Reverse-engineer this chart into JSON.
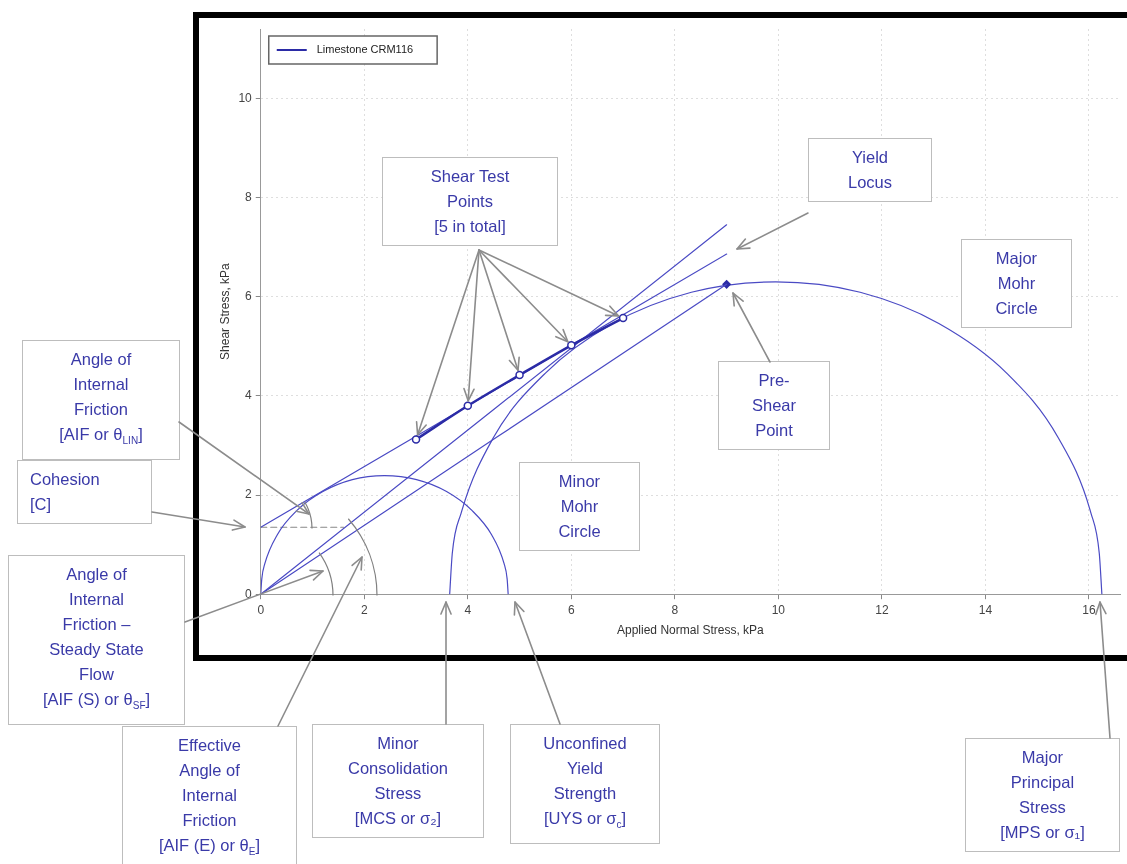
{
  "chart_data": {
    "type": "line",
    "xlabel": "Applied Normal Stress, kPa",
    "ylabel": "Shear Stress, kPa",
    "xlim": [
      0,
      16.6
    ],
    "ylim": [
      0,
      11.4
    ],
    "xticks": [
      0,
      2,
      4,
      6,
      8,
      10,
      12,
      14,
      16
    ],
    "yticks": [
      0,
      2,
      4,
      6,
      8,
      10
    ],
    "grid": true,
    "legend": "top left",
    "marker": "none",
    "series": [
      {
        "name": "Limestone CRM116",
        "color": "#2b2ba6",
        "marker": "circle",
        "x": [
          3,
          4,
          5,
          6,
          7
        ],
        "values": [
          3.12,
          3.8,
          4.42,
          5.02,
          5.57
        ]
      },
      {
        "color": "#4a4ac4",
        "x": [
          0,
          9
        ],
        "values": [
          1.35,
          6.86
        ]
      },
      {
        "color": "#4a4ac4",
        "x": [
          0,
          9
        ],
        "values": [
          0,
          7.45
        ]
      },
      {
        "color": "#4a4ac4",
        "x": [
          0,
          9
        ],
        "values": [
          0,
          6.25
        ]
      },
      {
        "type": "scatter",
        "color": "#2b2ba6",
        "marker": "diamond",
        "x": [
          9
        ],
        "values": [
          6.25
        ]
      },
      {
        "color": "#4a4ac4",
        "x": [
          0,
          0.02,
          0.08,
          0.32,
          0.7,
          1.2,
          1.77,
          2.39,
          3.01,
          3.59,
          4.08,
          4.46,
          4.7,
          4.76,
          4.78
        ],
        "values": [
          0,
          0.31,
          0.62,
          1.2,
          1.69,
          2.07,
          2.31,
          2.39,
          2.31,
          2.07,
          1.69,
          1.2,
          0.62,
          0.31,
          0
        ]
      },
      {
        "color": "#4a4ac4",
        "x": [
          3.65,
          3.7,
          3.87,
          4.49,
          5.5,
          6.8,
          8.32,
          9.95,
          11.58,
          13.1,
          14.41,
          15.41,
          16.04,
          16.2,
          16.25
        ],
        "values": [
          0,
          0.82,
          1.63,
          3.15,
          4.46,
          5.46,
          6.09,
          6.3,
          6.09,
          5.46,
          4.46,
          3.15,
          1.63,
          0.82,
          0
        ]
      },
      {
        "color": "#888888",
        "line_style": "dashed",
        "x": [
          0,
          1.6
        ],
        "values": [
          1.35,
          1.35
        ]
      }
    ],
    "annotations": [
      {
        "text": "Shear Test\nPoints\n[5 in total]",
        "x": 3,
        "y": 3.12
      },
      "Yield\nLocus",
      "Major\nMohr\nCircle",
      "Pre-\nShear\nPoint",
      "Minor\nMohr\nCircle",
      "Angle of\nInternal\nFriction\n[AIF or θ$_{LIN}$]",
      "Cohesion\n[C]",
      "Angle of\nInternal\nFriction –\nSteady State\nFlow\n[AIF (S) or θ$_{SF}$]",
      "Effective\nAngle of\nInternal\nFriction\n[AIF (E) or θ$_{E}$]",
      "Minor\nConsolidation\nStress\n[MCS or σ₂]",
      "Unconfined\nYield\nStrength\n[UYS or σ$_{c}$]",
      "Major\nPrincipal\nStress\n[MPS or σ₁]"
    ]
  }
}
